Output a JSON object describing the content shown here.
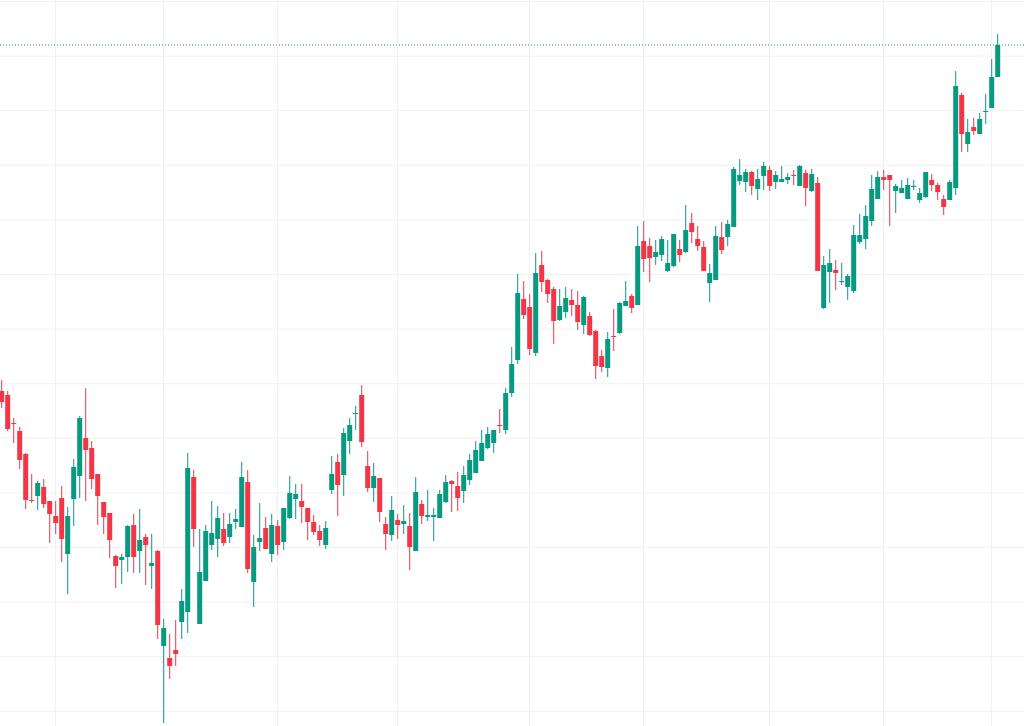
{
  "chart_data": {
    "type": "candlestick",
    "title": "",
    "xlabel": "",
    "ylabel": "",
    "ylim": [
      0,
      72.6
    ],
    "grid": true,
    "legend": "none",
    "last_price_line": 68.1,
    "colors": {
      "up": "#089981",
      "down": "#F23645",
      "grid": "#f1f1f1",
      "background": "#ffffff"
    },
    "ohlc": [
      [
        33.5,
        34.6,
        31.8,
        32.4
      ],
      [
        33.1,
        33.5,
        29.5,
        29.7
      ],
      [
        30.3,
        30.8,
        28.3,
        30.2
      ],
      [
        29.5,
        29.9,
        25.7,
        26.6
      ],
      [
        27.2,
        27.3,
        21.7,
        22.6
      ],
      [
        22.6,
        25.2,
        22.3,
        22.5
      ],
      [
        23.0,
        24.5,
        21.6,
        24.3
      ],
      [
        23.9,
        24.7,
        21.8,
        22.2
      ],
      [
        22.5,
        22.5,
        18.3,
        21.2
      ],
      [
        21.0,
        22.5,
        19.2,
        20.3
      ],
      [
        22.8,
        24.0,
        16.4,
        18.7
      ],
      [
        17.2,
        21.9,
        13.2,
        21.0
      ],
      [
        22.7,
        26.7,
        20.0,
        25.9
      ],
      [
        25.0,
        31.0,
        22.8,
        30.8
      ],
      [
        28.8,
        33.8,
        22.5,
        27.6
      ],
      [
        27.8,
        28.5,
        23.7,
        24.7
      ],
      [
        25.2,
        25.2,
        20.1,
        23.0
      ],
      [
        22.4,
        22.4,
        19.2,
        20.9
      ],
      [
        21.3,
        21.3,
        16.8,
        18.6
      ],
      [
        17.0,
        17.1,
        13.8,
        16.0
      ],
      [
        16.6,
        17.2,
        14.2,
        16.9
      ],
      [
        16.9,
        20.1,
        15.4,
        20.0
      ],
      [
        20.1,
        21.2,
        15.3,
        16.9
      ],
      [
        17.5,
        21.7,
        15.3,
        18.6
      ],
      [
        18.9,
        19.2,
        14.1,
        18.1
      ],
      [
        16.0,
        19.2,
        13.7,
        16.3
      ],
      [
        17.5,
        17.6,
        8.7,
        10.1
      ],
      [
        8.0,
        10.7,
        0.3,
        9.8
      ],
      [
        6.8,
        9.2,
        4.7,
        6.0
      ],
      [
        7.6,
        10.6,
        6.0,
        7.2
      ],
      [
        10.4,
        13.7,
        8.7,
        12.5
      ],
      [
        11.4,
        27.3,
        9.3,
        25.8
      ],
      [
        24.9,
        25.6,
        17.9,
        19.7
      ],
      [
        10.2,
        19.7,
        10.2,
        15.4
      ],
      [
        14.5,
        20.1,
        14.5,
        19.5
      ],
      [
        18.1,
        22.5,
        17.6,
        19.3
      ],
      [
        18.7,
        22.0,
        16.9,
        20.8
      ],
      [
        19.7,
        21.3,
        18.0,
        18.3
      ],
      [
        18.9,
        21.3,
        18.3,
        20.2
      ],
      [
        20.4,
        21.7,
        19.7,
        20.7
      ],
      [
        19.9,
        26.4,
        19.9,
        24.9
      ],
      [
        24.4,
        25.6,
        15.3,
        15.7
      ],
      [
        14.4,
        19.1,
        11.9,
        17.9
      ],
      [
        18.4,
        22.3,
        17.5,
        18.8
      ],
      [
        19.8,
        20.9,
        17.7,
        17.7
      ],
      [
        17.2,
        21.2,
        16.4,
        20.1
      ],
      [
        20.0,
        20.6,
        17.1,
        18.1
      ],
      [
        18.4,
        21.8,
        17.6,
        21.8
      ],
      [
        20.8,
        25.0,
        20.7,
        23.3
      ],
      [
        22.7,
        24.2,
        20.7,
        23.2
      ],
      [
        22.5,
        24.2,
        20.3,
        21.9
      ],
      [
        21.8,
        21.8,
        18.6,
        20.4
      ],
      [
        20.4,
        21.1,
        19.1,
        19.4
      ],
      [
        19.5,
        20.1,
        18.0,
        18.6
      ],
      [
        18.1,
        20.5,
        17.7,
        19.8
      ],
      [
        23.6,
        27.0,
        23.2,
        25.2
      ],
      [
        26.4,
        27.2,
        21.0,
        24.1
      ],
      [
        25.1,
        29.8,
        23.0,
        29.3
      ],
      [
        28.5,
        30.8,
        27.2,
        30.1
      ],
      [
        31.2,
        32.0,
        29.6,
        31.3
      ],
      [
        33.1,
        34.1,
        27.9,
        28.4
      ],
      [
        26.0,
        27.5,
        23.4,
        23.8
      ],
      [
        23.8,
        26.3,
        22.4,
        25.0
      ],
      [
        24.8,
        24.8,
        20.4,
        21.4
      ],
      [
        20.2,
        20.9,
        17.6,
        19.2
      ],
      [
        19.1,
        23.0,
        18.5,
        21.6
      ],
      [
        20.6,
        21.2,
        18.7,
        20.1
      ],
      [
        20.2,
        22.1,
        19.2,
        20.5
      ],
      [
        20.0,
        21.3,
        15.6,
        17.9
      ],
      [
        17.5,
        24.9,
        17.5,
        23.4
      ],
      [
        22.2,
        22.6,
        20.2,
        21.0
      ],
      [
        20.9,
        23.6,
        20.5,
        21.1
      ],
      [
        20.9,
        21.8,
        18.5,
        21.1
      ],
      [
        20.8,
        23.6,
        20.8,
        23.2
      ],
      [
        22.4,
        25.1,
        22.3,
        24.4
      ],
      [
        24.5,
        24.6,
        21.4,
        24.2
      ],
      [
        24.0,
        25.4,
        21.5,
        22.8
      ],
      [
        23.5,
        26.0,
        22.3,
        25.1
      ],
      [
        24.6,
        27.2,
        24.1,
        26.6
      ],
      [
        25.3,
        28.5,
        25.3,
        27.6
      ],
      [
        26.5,
        29.6,
        26.5,
        28.3
      ],
      [
        27.8,
        29.9,
        27.7,
        29.2
      ],
      [
        28.3,
        29.6,
        27.3,
        29.6
      ],
      [
        30.1,
        31.7,
        29.3,
        30.0
      ],
      [
        29.6,
        33.8,
        29.2,
        33.3
      ],
      [
        33.3,
        37.9,
        32.9,
        36.2
      ],
      [
        36.6,
        45.2,
        36.2,
        43.3
      ],
      [
        42.7,
        44.5,
        40.7,
        41.1
      ],
      [
        41.9,
        43.2,
        37.1,
        37.7
      ],
      [
        37.3,
        47.3,
        37.0,
        45.3
      ],
      [
        46.1,
        47.5,
        43.4,
        44.4
      ],
      [
        44.6,
        44.7,
        42.3,
        43.2
      ],
      [
        43.7,
        43.9,
        38.2,
        40.5
      ],
      [
        40.6,
        43.7,
        40.5,
        42.0
      ],
      [
        41.4,
        43.9,
        40.8,
        42.8
      ],
      [
        42.6,
        43.7,
        41.0,
        42.1
      ],
      [
        42.1,
        43.5,
        39.6,
        40.4
      ],
      [
        40.1,
        43.0,
        39.2,
        42.9
      ],
      [
        41.0,
        41.4,
        39.0,
        39.1
      ],
      [
        39.5,
        39.6,
        34.7,
        36.0
      ],
      [
        37.0,
        37.6,
        35.4,
        35.9
      ],
      [
        35.8,
        39.4,
        34.9,
        38.7
      ],
      [
        39.0,
        41.7,
        37.5,
        38.9
      ],
      [
        39.3,
        42.4,
        39.2,
        42.3
      ],
      [
        42.0,
        44.5,
        42.0,
        42.5
      ],
      [
        43.0,
        43.2,
        41.3,
        41.8
      ],
      [
        42.1,
        50.0,
        42.1,
        48.0
      ],
      [
        48.5,
        50.5,
        45.4,
        46.7
      ],
      [
        48.0,
        48.8,
        44.4,
        46.8
      ],
      [
        46.9,
        48.6,
        46.1,
        47.4
      ],
      [
        47.1,
        49.0,
        46.5,
        48.7
      ],
      [
        45.5,
        48.6,
        45.4,
        46.3
      ],
      [
        46.0,
        49.2,
        45.9,
        49.2
      ],
      [
        47.7,
        48.6,
        46.4,
        47.1
      ],
      [
        47.4,
        52.1,
        47.3,
        49.6
      ],
      [
        50.3,
        51.3,
        48.3,
        49.4
      ],
      [
        48.7,
        50.0,
        47.5,
        48.0
      ],
      [
        47.9,
        48.5,
        45.5,
        45.5
      ],
      [
        44.3,
        46.2,
        42.4,
        45.3
      ],
      [
        44.6,
        50.0,
        44.6,
        49.0
      ],
      [
        48.9,
        50.4,
        47.2,
        47.6
      ],
      [
        48.9,
        50.6,
        48.0,
        50.2
      ],
      [
        49.9,
        55.9,
        49.9,
        55.7
      ],
      [
        54.5,
        56.7,
        54.1,
        55.1
      ],
      [
        54.4,
        55.7,
        53.4,
        55.4
      ],
      [
        55.4,
        55.5,
        53.1,
        54.0
      ],
      [
        53.7,
        55.7,
        52.6,
        54.7
      ],
      [
        55.0,
        56.4,
        53.6,
        56.0
      ],
      [
        55.6,
        56.0,
        53.5,
        54.0
      ],
      [
        54.4,
        55.5,
        53.7,
        55.1
      ],
      [
        54.4,
        56.0,
        54.4,
        54.7
      ],
      [
        54.6,
        55.3,
        54.2,
        54.9
      ],
      [
        55.1,
        55.6,
        54.1,
        55.0
      ],
      [
        54.0,
        56.1,
        54.0,
        56.0
      ],
      [
        55.3,
        55.6,
        52.0,
        53.8
      ],
      [
        53.5,
        55.7,
        53.4,
        55.2
      ],
      [
        54.3,
        54.9,
        45.5,
        45.5
      ],
      [
        41.8,
        47.0,
        41.7,
        46.1
      ],
      [
        45.4,
        47.7,
        42.3,
        46.3
      ],
      [
        45.6,
        46.6,
        43.6,
        45.3
      ],
      [
        44.4,
        46.3,
        44.1,
        44.5
      ],
      [
        43.9,
        45.2,
        42.6,
        45.0
      ],
      [
        43.5,
        50.1,
        43.3,
        49.1
      ],
      [
        48.4,
        51.2,
        48.2,
        49.1
      ],
      [
        48.7,
        52.1,
        47.7,
        51.0
      ],
      [
        50.5,
        55.1,
        50.0,
        53.7
      ],
      [
        52.7,
        55.5,
        52.7,
        54.9
      ],
      [
        54.9,
        55.6,
        53.6,
        54.6
      ],
      [
        55.1,
        55.1,
        50.0,
        54.6
      ],
      [
        53.5,
        54.2,
        51.3,
        54.0
      ],
      [
        53.3,
        54.6,
        53.3,
        53.8
      ],
      [
        52.7,
        54.8,
        52.7,
        54.1
      ],
      [
        53.9,
        54.6,
        53.6,
        54.0
      ],
      [
        52.6,
        53.8,
        52.3,
        53.3
      ],
      [
        52.9,
        55.4,
        52.8,
        55.4
      ],
      [
        54.6,
        55.2,
        53.5,
        54.1
      ],
      [
        54.1,
        54.3,
        52.6,
        53.4
      ],
      [
        52.7,
        53.1,
        51.1,
        51.9
      ],
      [
        52.6,
        54.6,
        52.6,
        54.4
      ],
      [
        53.8,
        65.5,
        53.1,
        64.0
      ],
      [
        63.1,
        63.3,
        57.4,
        59.2
      ],
      [
        58.2,
        60.7,
        57.4,
        59.4
      ],
      [
        59.9,
        60.8,
        59.1,
        59.5
      ],
      [
        59.2,
        61.3,
        59.2,
        60.7
      ],
      [
        61.4,
        63.2,
        60.2,
        61.5
      ],
      [
        61.8,
        66.7,
        61.8,
        64.9
      ],
      [
        64.9,
        69.2,
        64.9,
        68.1
      ]
    ]
  }
}
